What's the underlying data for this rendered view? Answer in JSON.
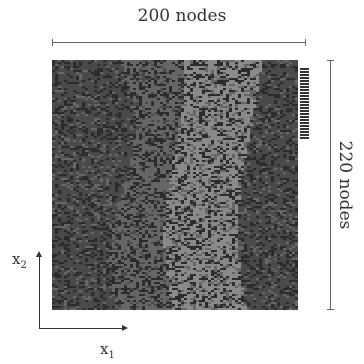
{
  "dimensions": {
    "width_label": "200 nodes",
    "height_label": "220 nodes"
  },
  "axes": {
    "x_main": "x",
    "x_sub": "1",
    "y_main": "x",
    "y_sub": "2"
  },
  "field": {
    "palette": [
      "#4a4a4a",
      "#666666",
      "#8a8a8a",
      "#2c2c2c"
    ],
    "band_count": 4
  },
  "legend": {
    "swatch_count": 24
  }
}
